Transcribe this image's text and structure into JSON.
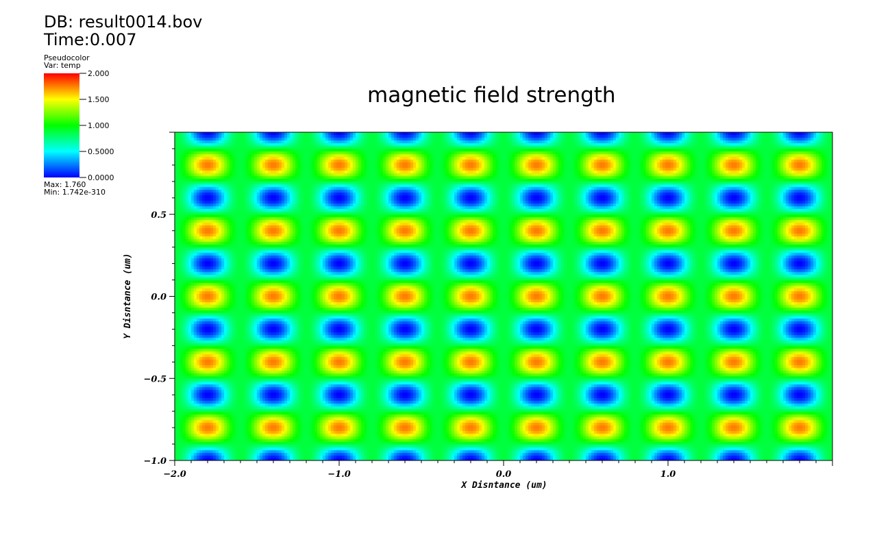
{
  "header": {
    "db": "DB: result0014.bov",
    "time": "Time:0.007"
  },
  "legend": {
    "plot_type": "Pseudocolor",
    "variable": "Var: temp",
    "ticks": [
      {
        "value": 2.0,
        "label": "2.000"
      },
      {
        "value": 1.5,
        "label": "1.500"
      },
      {
        "value": 1.0,
        "label": "1.000"
      },
      {
        "value": 0.5,
        "label": "0.5000"
      },
      {
        "value": 0.0,
        "label": "0.0000"
      }
    ],
    "range": [
      0,
      2
    ],
    "max_label": "Max:  1.760",
    "min_label": "Min:  1.742e-310",
    "colormap": [
      "#0000ff",
      "#00ffff",
      "#00ff00",
      "#ffff00",
      "#ff0000"
    ]
  },
  "chart_data": {
    "type": "heatmap",
    "title": "magnetic field strength",
    "xlabel": "X Disntance (um)",
    "ylabel": "Y Disntance (um)",
    "xlim": [
      -2.0,
      2.0
    ],
    "ylim": [
      -1.0,
      1.0
    ],
    "x_ticks": [
      {
        "value": -2.0,
        "label": "-2.0"
      },
      {
        "value": -1.0,
        "label": "-1.0"
      },
      {
        "value": 0.0,
        "label": "0.0"
      },
      {
        "value": 1.0,
        "label": "1.0"
      }
    ],
    "y_ticks": [
      {
        "value": -1.0,
        "label": "-1.0"
      },
      {
        "value": -0.5,
        "label": "-0.5"
      },
      {
        "value": 0.0,
        "label": "0.0"
      },
      {
        "value": 0.5,
        "label": "0.5"
      }
    ],
    "field": {
      "description": "periodic hexagonal pattern",
      "period_x": 0.4,
      "period_y": 0.4,
      "max": 1.76,
      "min": 0.0
    }
  }
}
